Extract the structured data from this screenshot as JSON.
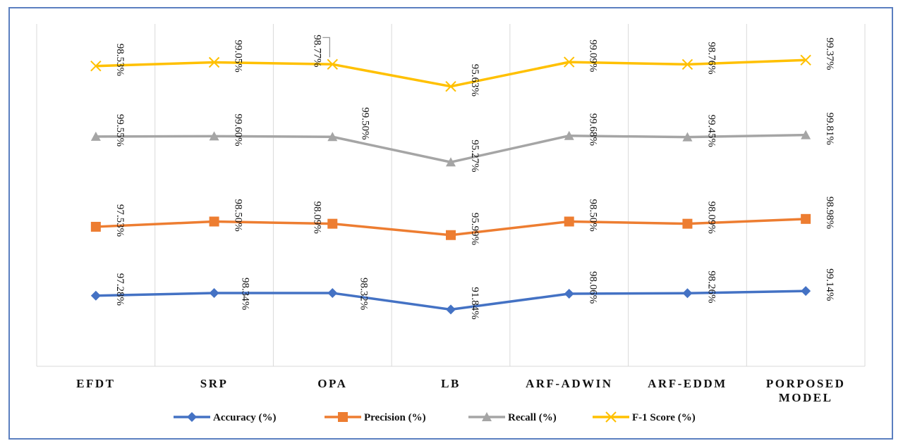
{
  "chart_data": {
    "type": "line",
    "categories": [
      "EFDT",
      "SRP",
      "OPA",
      "LB",
      "ARF-ADWIN",
      "ARF-EDDM",
      "PORPOSED MODEL"
    ],
    "category_lines": [
      [
        "EFDT"
      ],
      [
        "SRP"
      ],
      [
        "OPA"
      ],
      [
        "LB"
      ],
      [
        "ARF-ADWIN"
      ],
      [
        "ARF-EDDM"
      ],
      [
        "PORPOSED",
        "MODEL"
      ]
    ],
    "series": [
      {
        "name": "Accuracy (%)",
        "values": [
          97.28,
          98.34,
          98.32,
          91.84,
          98.06,
          98.26,
          99.14
        ],
        "labels": [
          "97.28%",
          "98.34%",
          "98.32%",
          "91.84%",
          "98.06%",
          "98.26%",
          "99.14%"
        ],
        "color": "#4472c4",
        "marker": "diamond"
      },
      {
        "name": "Precision (%)",
        "values": [
          97.53,
          98.5,
          98.09,
          95.99,
          98.5,
          98.09,
          98.98
        ],
        "labels": [
          "97.53%",
          "98.50%",
          "98.09%",
          "95.99%",
          "98.50%",
          "98.09%",
          "98.98%"
        ],
        "color": "#ed7d31",
        "marker": "square"
      },
      {
        "name": "Recall (%)",
        "values": [
          99.55,
          99.6,
          99.5,
          95.27,
          99.68,
          99.45,
          99.81
        ],
        "labels": [
          "99.55%",
          "99.60%",
          "99.50%",
          "95.27%",
          "99.68%",
          "99.45%",
          "99.81%"
        ],
        "color": "#a5a5a5",
        "marker": "triangle"
      },
      {
        "name": "F-1 Score (%)",
        "values": [
          98.53,
          99.05,
          98.77,
          95.63,
          99.09,
          98.76,
          99.37
        ],
        "labels": [
          "98.53%",
          "99.05%",
          "98.77%",
          "95.63%",
          "99.09%",
          "98.76%",
          "99.37%"
        ],
        "color": "#ffc000",
        "marker": "x"
      }
    ],
    "title": "",
    "xlabel": "",
    "ylabel": "",
    "grid": "vertical",
    "legend_position": "bottom"
  }
}
